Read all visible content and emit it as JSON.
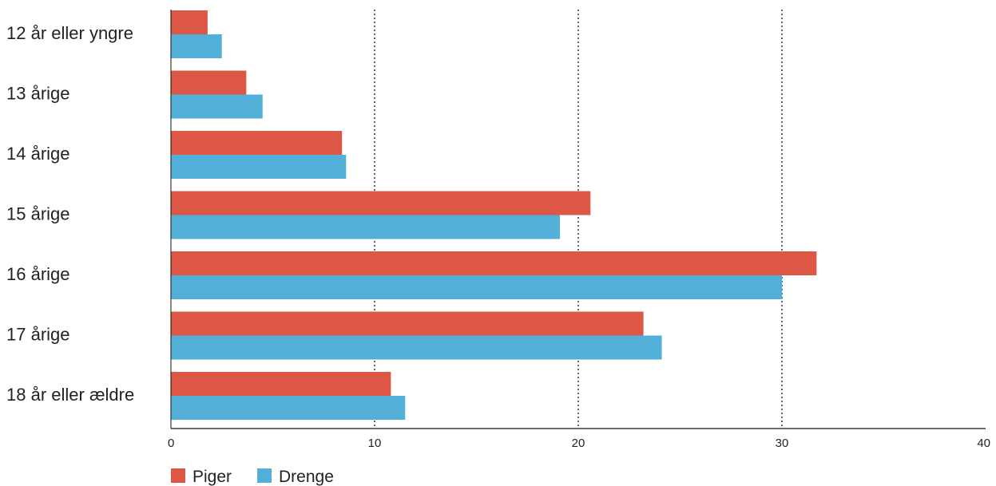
{
  "chart_data": {
    "type": "bar",
    "orientation": "horizontal",
    "categories": [
      "12 år eller yngre",
      "13 årige",
      "14 årige",
      "15 årige",
      "16 årige",
      "17 årige",
      "18 år eller ældre"
    ],
    "series": [
      {
        "name": "Piger",
        "color": "#dd5747",
        "values": [
          1.8,
          3.7,
          8.4,
          20.6,
          31.7,
          23.2,
          10.8
        ]
      },
      {
        "name": "Drenge",
        "color": "#52b0d8",
        "values": [
          2.5,
          4.5,
          8.6,
          19.1,
          30.0,
          24.1,
          11.5
        ]
      }
    ],
    "xlim": [
      0,
      40
    ],
    "xticks": [
      0,
      10,
      20,
      30,
      40
    ],
    "grid": {
      "vertical": true,
      "style": "dotted",
      "at": [
        10,
        20,
        30
      ]
    },
    "legend": {
      "placement": "bottom-left"
    },
    "title": "",
    "xlabel": "",
    "ylabel": ""
  }
}
